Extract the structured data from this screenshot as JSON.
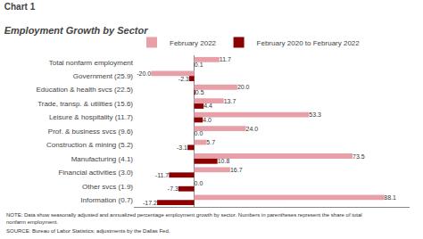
{
  "chart_data": {
    "type": "bar",
    "orientation": "horizontal",
    "title": "Chart 1",
    "subtitle": "Employment Growth by Sector",
    "categories": [
      "Total nonfarm employment",
      "Government (25.9)",
      "Education & health svcs (22.5)",
      "Trade, transp. & utilities (15.6)",
      "Leisure & hospitality (11.7)",
      "Prof. & business svcs (9.6)",
      "Construction & mining (5.2)",
      "Manufacturing (4.1)",
      "Financial activities (3.0)",
      "Other svcs (1.9)",
      "Information (0.7)"
    ],
    "series": [
      {
        "name": "February 2022",
        "color": "#e8a0a8",
        "values": [
          11.7,
          -20.0,
          20.0,
          13.7,
          53.3,
          24.0,
          5.7,
          73.5,
          16.7,
          0.0,
          88.1
        ],
        "value_labels": [
          "11.7",
          "-20.0",
          "20.0",
          "13.7",
          "53.3",
          "24.0",
          "5.7",
          "73.5",
          "16.7",
          "0.0",
          "88.1"
        ]
      },
      {
        "name": "February 2020 to February 2022",
        "color": "#8b0000",
        "values": [
          0.1,
          -2.3,
          0.5,
          4.4,
          4.0,
          0.0,
          -3.1,
          10.8,
          -11.7,
          -7.3,
          -17.2
        ],
        "value_labels": [
          "0.1",
          "-2.3",
          "0.5",
          "4.4",
          "4.0",
          "0.0",
          "-3.1",
          "10.8",
          "-11.7",
          "-7.3",
          "-17.2"
        ]
      }
    ],
    "xlim": [
      -28,
      100
    ],
    "data_labels": true,
    "tick_labels": "y",
    "grid": false,
    "legend": "top",
    "annotations": [
      "NOTE: Data show seasonally adjusted and annualized percentage employment growth by sector. Numbers in parentheses represent the share of total\nnonfarm employment.",
      "SOURCE: Bureau of Labor Statistics; adjustments by the Dallas Fed."
    ]
  }
}
